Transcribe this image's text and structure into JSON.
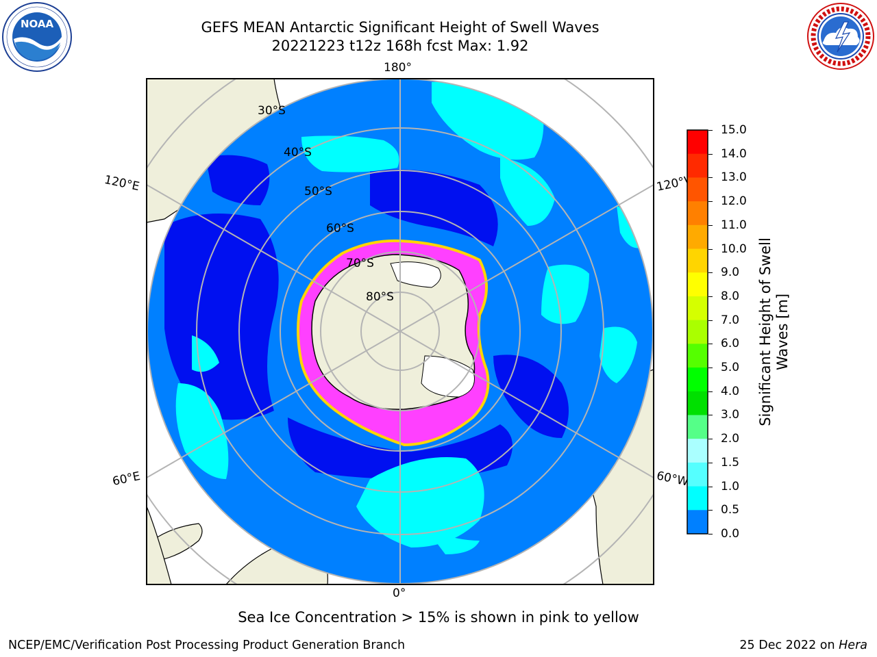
{
  "header": {
    "title": "GEFS MEAN Antarctic Significant Height of Swell Waves",
    "subtitle": "20221223 t12z 168h fcst   Max: 1.92"
  },
  "logos": {
    "left": {
      "name": "noaa-logo",
      "text": "NOAA",
      "ring_text": "NATIONAL OCEANIC AND ATMOSPHERIC ADMINISTRATION · U.S. DEPARTMENT OF COMMERCE"
    },
    "right": {
      "name": "nws-logo",
      "ring_text": "NATIONAL WEATHER SERVICE"
    }
  },
  "map": {
    "projection": "south-polar-stereographic",
    "lon_labels": {
      "top": "180°",
      "bottom": "0°",
      "upper_left": "120°E",
      "upper_right": "120°W",
      "lower_left": "60°E",
      "lower_right": "60°W"
    },
    "lat_labels": [
      "30°S",
      "40°S",
      "50°S",
      "60°S",
      "70°S",
      "80°S"
    ]
  },
  "colorbar": {
    "label_line1": "Significant Height of Swell",
    "label_line2": "Waves [m]",
    "ticks": [
      "15.0",
      "14.0",
      "13.0",
      "12.0",
      "11.0",
      "10.0",
      "9.0",
      "8.0",
      "7.0",
      "6.0",
      "5.0",
      "4.0",
      "3.0",
      "2.0",
      "1.5",
      "1.0",
      "0.5",
      "0.0"
    ],
    "colors_top_to_bottom": [
      "#ff0000",
      "#ff2a00",
      "#ff5500",
      "#ff8000",
      "#ffaa00",
      "#ffd500",
      "#ffff00",
      "#d5ff00",
      "#aaff00",
      "#55ff00",
      "#00ff00",
      "#00e000",
      "#55ff88",
      "#aaffff",
      "#55ffff",
      "#00ffff",
      "#0080ff",
      "#0000ff"
    ]
  },
  "colors": {
    "land": "#efefdb",
    "ocean_dark": "#0010f0",
    "ocean_mid": "#0080ff",
    "ocean_light": "#00ffff",
    "ice_edge": "#ff40ff",
    "grid": "#b4b4b4"
  },
  "footer": {
    "ice_note": "Sea Ice Concentration > 15% is shown in pink to yellow",
    "credit": "NCEP/EMC/Verification Post Processing Product Generation Branch",
    "date": "25 Dec 2022 on",
    "machine": "Hera"
  }
}
